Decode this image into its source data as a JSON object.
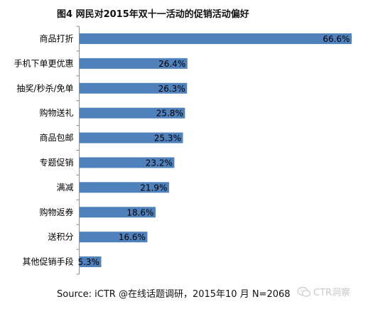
{
  "title": "图4 网民对2015年双十一活动的促销活动偏好",
  "source": "Source: iCTR @在线话题调研，2015年10  月 N=2068",
  "watermark": {
    "icon": "wechat-icon",
    "text": "CTR洞察",
    "color": "#c9c9c9"
  },
  "chart_data": {
    "type": "bar",
    "orientation": "horizontal",
    "categories": [
      "商品打折",
      "手机下单更优惠",
      "抽奖/秒杀/免单",
      "购物送礼",
      "商品包邮",
      "专题促销",
      "满减",
      "购物返券",
      "送积分",
      "其他促销手段"
    ],
    "values": [
      66.6,
      26.4,
      26.3,
      25.8,
      25.3,
      23.2,
      21.9,
      18.6,
      16.6,
      5.3
    ],
    "data_labels": [
      "66.6%",
      "26.4%",
      "26.3%",
      "25.8%",
      "25.3%",
      "23.2%",
      "21.9%",
      "18.6%",
      "16.6%",
      "5.3%"
    ],
    "title": "图4 网民对2015年双十一活动的促销活动偏好",
    "xlabel": "",
    "ylabel": "",
    "xlim": [
      0,
      70
    ],
    "grid": false,
    "legend": "none",
    "bar_color": "#4f81bd"
  }
}
